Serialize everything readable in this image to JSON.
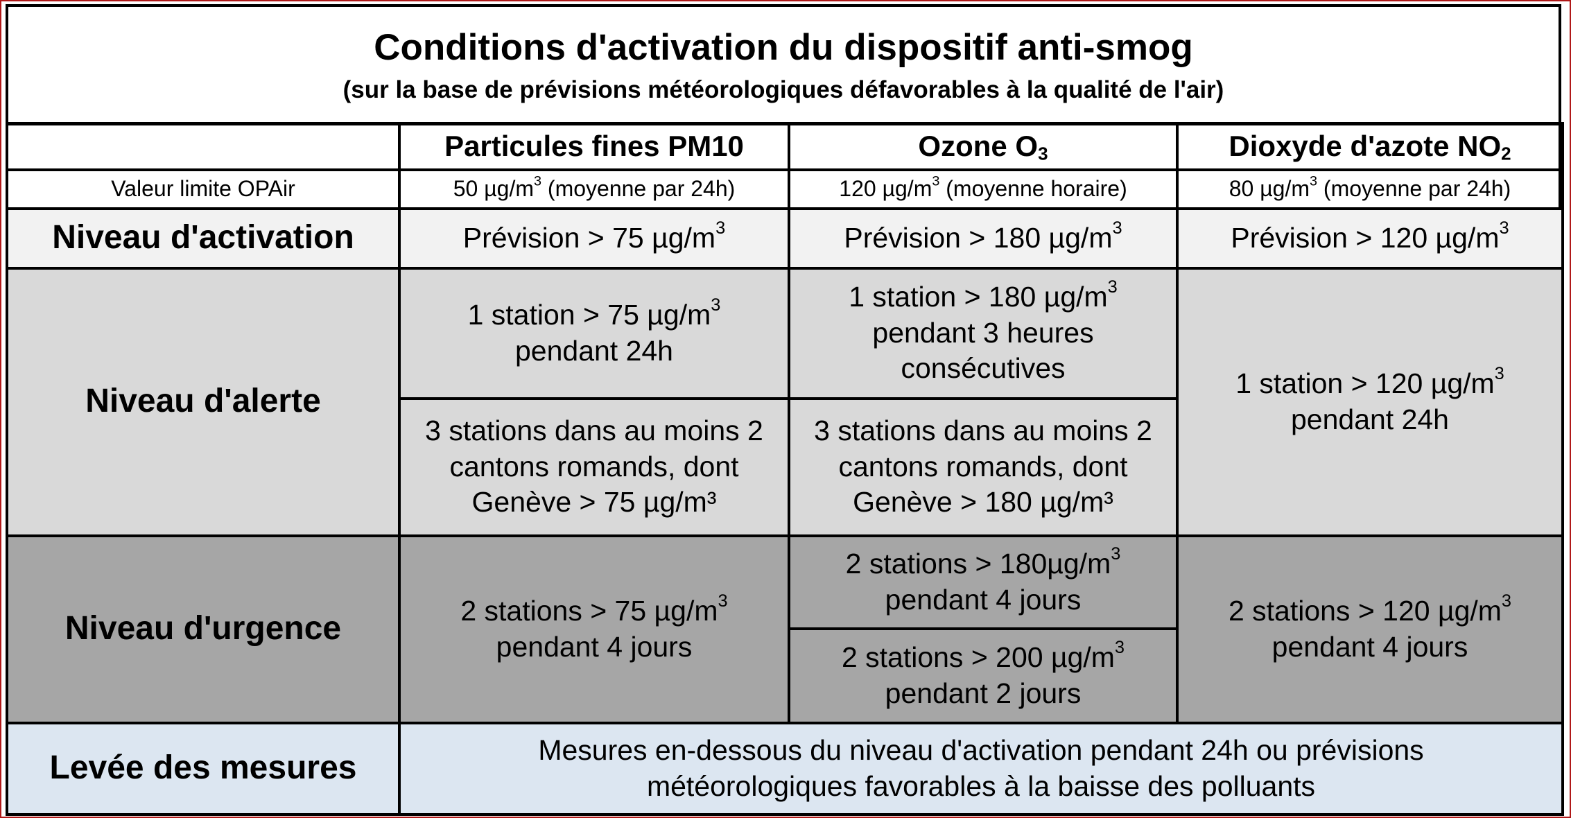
{
  "title": "Conditions d'activation du dispositif anti-smog",
  "subtitle": "(sur la base de prévisions météorologiques défavorables à la qualité de l'air)",
  "columns": {
    "pm10": {
      "label": "Particules fines PM10"
    },
    "o3": {
      "label": "Ozone O",
      "sub": "3"
    },
    "no2": {
      "label": "Dioxyde d'azote NO",
      "sub": "2"
    }
  },
  "limit_row": {
    "label": "Valeur limite OPAir",
    "pm10": {
      "value": "50 µg/m",
      "sup": "3",
      "note": " (moyenne par 24h)"
    },
    "o3": {
      "value": "120 µg/m",
      "sup": "3",
      "note": " (moyenne horaire)"
    },
    "no2": {
      "value": "80 µg/m",
      "sup": "3",
      "note": " (moyenne par 24h)"
    }
  },
  "activation": {
    "label": "Niveau d'activation",
    "pm10": {
      "value": "Prévision > 75 µg/m",
      "sup": "3"
    },
    "o3": {
      "value": "Prévision > 180 µg/m",
      "sup": "3"
    },
    "no2": {
      "value": "Prévision > 120 µg/m",
      "sup": "3"
    }
  },
  "alert": {
    "label": "Niveau d'alerte",
    "pm10_a": {
      "line1": "1 station > 75 µg/m",
      "sup": "3",
      "line2": "pendant 24h"
    },
    "o3_a": {
      "line1": "1 station > 180 µg/m",
      "sup": "3",
      "line2": "pendant 3 heures",
      "line3": "consécutives"
    },
    "no2": {
      "line1": "1 station > 120 µg/m",
      "sup": "3",
      "line2": "pendant 24h"
    },
    "pm10_b": {
      "line1": "3 stations dans au moins 2",
      "line2": "cantons romands, dont",
      "line3": "Genève > 75 µg/m³"
    },
    "o3_b": {
      "line1": "3 stations dans au moins 2",
      "line2": "cantons romands, dont",
      "line3": "Genève > 180 µg/m³"
    }
  },
  "urgency": {
    "label": "Niveau d'urgence",
    "pm10": {
      "line1": "2 stations > 75 µg/m",
      "sup": "3",
      "line2": "pendant 4 jours"
    },
    "o3_a": {
      "line1": "2 stations > 180µg/m",
      "sup": "3",
      "line2": "pendant 4 jours"
    },
    "o3_b": {
      "line1": "2 stations > 200 µg/m",
      "sup": "3",
      "line2": "pendant 2 jours"
    },
    "no2": {
      "line1": "2 stations > 120 µg/m",
      "sup": "3",
      "line2": "pendant 4 jours"
    }
  },
  "lifting": {
    "label": "Levée des mesures",
    "line1": "Mesures en-dessous du niveau d'activation pendant 24h ou prévisions",
    "line2": "météorologiques favorables à la baisse des polluants"
  },
  "colors": {
    "activation_bg": "#f2f2f2",
    "alert_bg": "#d9d9d9",
    "urgency_bg": "#a6a6a6",
    "lifting_bg": "#dce6f1",
    "outer_frame": "#b01818"
  }
}
